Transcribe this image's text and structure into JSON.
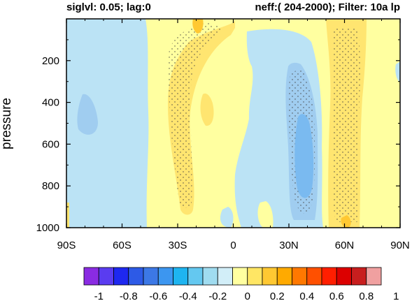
{
  "chart_data": {
    "type": "heatmap",
    "title_left": "siglvl: 0.05; lag:0",
    "title_right": "neff:( 204-2000); Filter: 10a lp",
    "ylabel": "pressure",
    "xlabel": "",
    "x_ticks": [
      {
        "value": -90,
        "label": "90S"
      },
      {
        "value": -60,
        "label": "60S"
      },
      {
        "value": -30,
        "label": "30S"
      },
      {
        "value": 0,
        "label": "0"
      },
      {
        "value": 30,
        "label": "30N"
      },
      {
        "value": 60,
        "label": "60N"
      },
      {
        "value": 90,
        "label": "90N"
      }
    ],
    "y_ticks": [
      {
        "value": 200,
        "label": "200"
      },
      {
        "value": 400,
        "label": "400"
      },
      {
        "value": 600,
        "label": "600"
      },
      {
        "value": 800,
        "label": "800"
      },
      {
        "value": 1000,
        "label": "1000"
      }
    ],
    "xlim": [
      -90,
      90
    ],
    "ylim": [
      1000,
      0
    ],
    "colorbar": {
      "levels": [
        -1,
        -0.9,
        -0.8,
        -0.7,
        -0.6,
        -0.5,
        -0.4,
        -0.3,
        -0.2,
        -0.1,
        0,
        0.1,
        0.2,
        0.3,
        0.4,
        0.5,
        0.6,
        0.7,
        0.8,
        0.9,
        1
      ],
      "labels": [
        {
          "value": -1,
          "label": "-1"
        },
        {
          "value": -0.8,
          "label": "-0.8"
        },
        {
          "value": -0.6,
          "label": "-0.6"
        },
        {
          "value": -0.4,
          "label": "-0.4"
        },
        {
          "value": -0.2,
          "label": "-0.2"
        },
        {
          "value": 0,
          "label": "0"
        },
        {
          "value": 0.2,
          "label": "0.2"
        },
        {
          "value": 0.4,
          "label": "0.4"
        },
        {
          "value": 0.6,
          "label": "0.6"
        },
        {
          "value": 0.8,
          "label": "0.8"
        },
        {
          "value": 1,
          "label": "1"
        }
      ],
      "colors": [
        "#8a2be2",
        "#5a3cf0",
        "#1e28f0",
        "#2d5ae6",
        "#3c78e6",
        "#3c96f0",
        "#1eb4f0",
        "#64c8f0",
        "#a0dcf0",
        "#d2eef8",
        "#ffffa0",
        "#ffe664",
        "#ffc832",
        "#ffaa00",
        "#ff7800",
        "#ff5000",
        "#ff1e00",
        "#dc0000",
        "#c81e1e",
        "#f0a0a0"
      ],
      "colors_extra": {
        "top": "#ffb4b4"
      }
    },
    "significance_hatching": "dots",
    "regions": [
      {
        "level": 0.05,
        "color": "#ffffa0",
        "desc": "background weak positive"
      },
      {
        "level": -0.05,
        "color": "#bbe3f5",
        "lat": [
          -90,
          -47
        ],
        "p": [
          0,
          1000
        ]
      },
      {
        "level": -0.15,
        "color": "#a0cdf0",
        "lat": [
          -81,
          -74
        ],
        "p": [
          380,
          600
        ]
      },
      {
        "level": 0.15,
        "color": "#ffe570",
        "lat": [
          -31,
          -5
        ],
        "p": [
          0,
          900
        ],
        "significant": true
      },
      {
        "level": -0.05,
        "color": "#bbe3f5",
        "lat": [
          -3,
          53
        ],
        "p": [
          0,
          1000
        ]
      },
      {
        "level": -0.15,
        "color": "#a0cdf0",
        "lat": [
          22,
          50
        ],
        "p": [
          80,
          950
        ],
        "significant": true
      },
      {
        "level": -0.25,
        "color": "#7abaf0",
        "lat": [
          30,
          44
        ],
        "p": [
          490,
          920
        ]
      },
      {
        "level": 0.15,
        "color": "#ffe570",
        "lat": [
          52,
          72
        ],
        "p": [
          0,
          1000
        ],
        "significant": true
      }
    ]
  }
}
